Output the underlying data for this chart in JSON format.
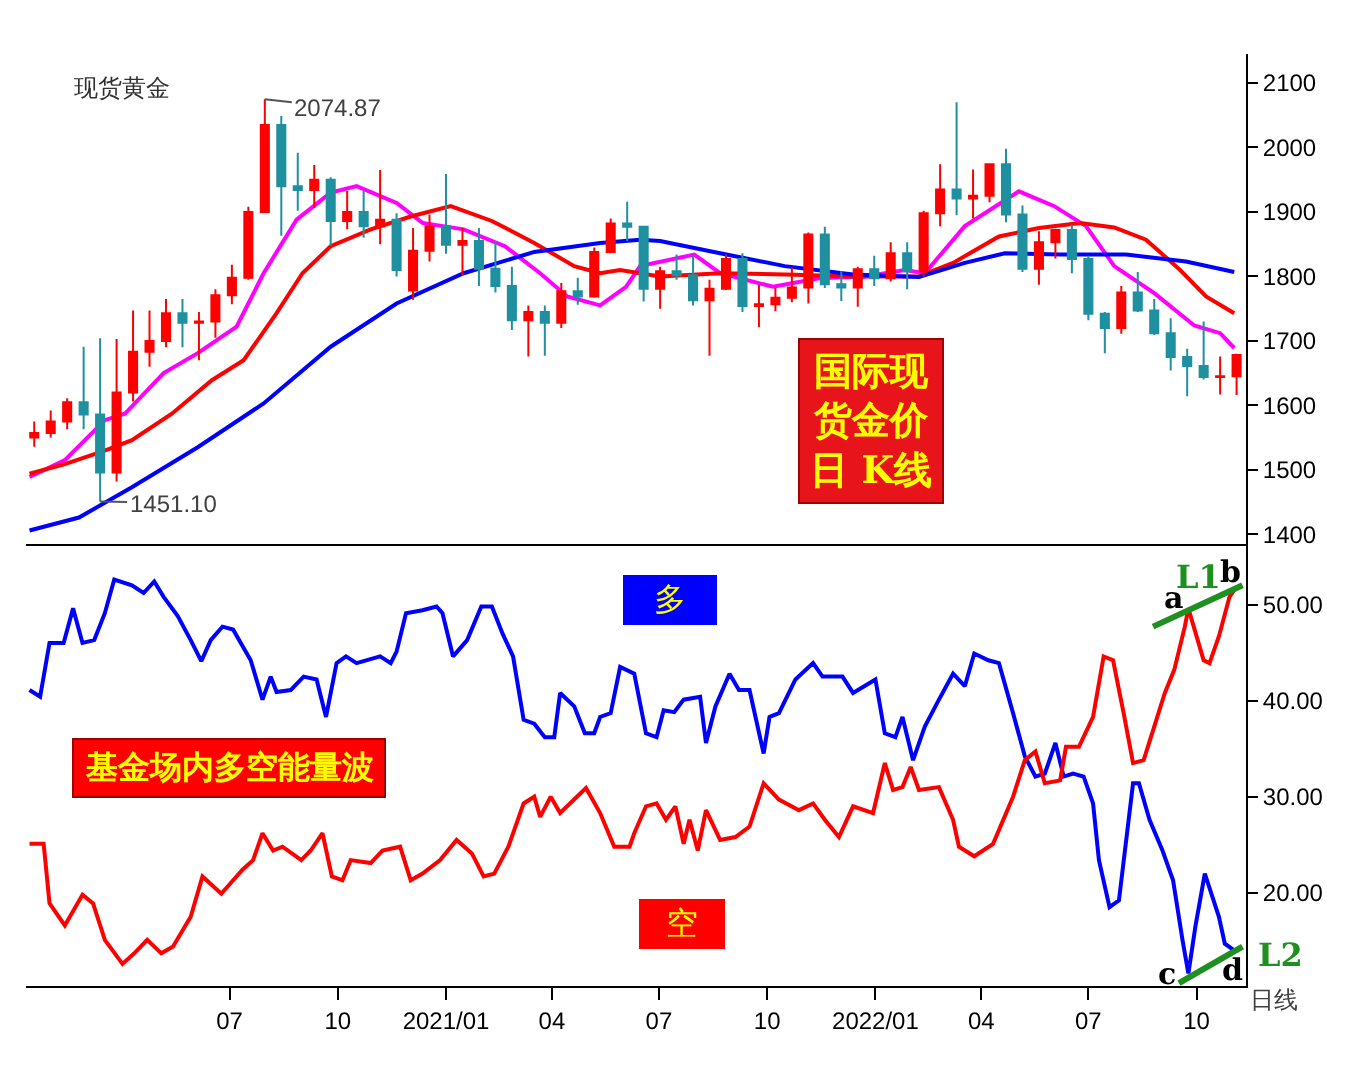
{
  "chart_data": [
    {
      "type": "candlestick",
      "title": "现货黄金",
      "x": [
        "2020-01-17",
        "2020-01-31",
        "2020-02-14",
        "2020-02-28",
        "2020-03-13",
        "2020-03-27",
        "2020-04-10",
        "2020-04-24",
        "2020-05-08",
        "2020-05-22",
        "2020-06-05",
        "2020-06-19",
        "2020-07-03",
        "2020-07-17",
        "2020-07-31",
        "2020-08-14",
        "2020-08-28",
        "2020-09-11",
        "2020-09-25",
        "2020-10-09",
        "2020-10-23",
        "2020-11-06",
        "2020-11-20",
        "2020-12-04",
        "2020-12-18",
        "2021-01-01",
        "2021-01-15",
        "2021-01-29",
        "2021-02-12",
        "2021-02-26",
        "2021-03-12",
        "2021-03-26",
        "2021-04-09",
        "2021-04-23",
        "2021-05-07",
        "2021-05-21",
        "2021-06-04",
        "2021-06-18",
        "2021-07-02",
        "2021-07-16",
        "2021-07-30",
        "2021-08-13",
        "2021-08-27",
        "2021-09-10",
        "2021-09-24",
        "2021-10-08",
        "2021-10-22",
        "2021-11-05",
        "2021-11-19",
        "2021-12-03",
        "2021-12-17",
        "2021-12-31",
        "2022-01-14",
        "2022-01-28",
        "2022-02-11",
        "2022-02-25",
        "2022-03-11",
        "2022-03-25",
        "2022-04-08",
        "2022-04-22",
        "2022-05-06",
        "2022-05-20",
        "2022-06-03",
        "2022-06-17",
        "2022-07-01",
        "2022-07-15",
        "2022-07-29",
        "2022-08-12",
        "2022-08-26",
        "2022-09-09",
        "2022-09-23",
        "2022-10-07",
        "2022-10-21",
        "2022-11-04"
      ],
      "ohlc": [
        [
          1550,
          1575,
          1536,
          1557
        ],
        [
          1557,
          1592,
          1550,
          1575
        ],
        [
          1575,
          1611,
          1563,
          1605
        ],
        [
          1605,
          1691,
          1563,
          1586
        ],
        [
          1586,
          1704,
          1451.1,
          1496
        ],
        [
          1496,
          1703,
          1482,
          1620
        ],
        [
          1620,
          1747,
          1606,
          1683
        ],
        [
          1683,
          1747,
          1660,
          1700
        ],
        [
          1700,
          1765,
          1690,
          1743
        ],
        [
          1743,
          1765,
          1690,
          1728
        ],
        [
          1728,
          1745,
          1670,
          1730
        ],
        [
          1730,
          1780,
          1705,
          1771
        ],
        [
          1771,
          1818,
          1757,
          1798
        ],
        [
          1798,
          1908,
          1795,
          1900
        ],
        [
          1900,
          2074.87,
          1900,
          2035
        ],
        [
          2035,
          2049,
          1863,
          1940
        ],
        [
          1940,
          1992,
          1902,
          1934
        ],
        [
          1934,
          1973,
          1906,
          1950
        ],
        [
          1950,
          1954,
          1848,
          1886
        ],
        [
          1886,
          1933,
          1873,
          1900
        ],
        [
          1900,
          1933,
          1860,
          1878
        ],
        [
          1878,
          1965,
          1850,
          1888
        ],
        [
          1888,
          1898,
          1800,
          1810
        ],
        [
          1778,
          1875,
          1764,
          1840
        ],
        [
          1840,
          1896,
          1823,
          1878
        ],
        [
          1878,
          1959,
          1835,
          1849
        ],
        [
          1849,
          1875,
          1802,
          1855
        ],
        [
          1855,
          1875,
          1785,
          1812
        ],
        [
          1812,
          1855,
          1775,
          1785
        ],
        [
          1785,
          1815,
          1717,
          1732
        ],
        [
          1732,
          1755,
          1676,
          1745
        ],
        [
          1745,
          1755,
          1677,
          1728
        ],
        [
          1728,
          1790,
          1720,
          1777
        ],
        [
          1777,
          1798,
          1756,
          1769
        ],
        [
          1769,
          1845,
          1767,
          1838
        ],
        [
          1838,
          1890,
          1836,
          1882
        ],
        [
          1882,
          1916,
          1855,
          1877
        ],
        [
          1877,
          1877,
          1761,
          1781
        ],
        [
          1781,
          1815,
          1750,
          1808
        ],
        [
          1808,
          1834,
          1795,
          1802
        ],
        [
          1802,
          1832,
          1755,
          1763
        ],
        [
          1763,
          1795,
          1677,
          1781
        ],
        [
          1781,
          1834,
          1779,
          1827
        ],
        [
          1827,
          1836,
          1745,
          1754
        ],
        [
          1754,
          1787,
          1721,
          1757
        ],
        [
          1757,
          1782,
          1746,
          1767
        ],
        [
          1767,
          1814,
          1760,
          1783
        ],
        [
          1783,
          1868,
          1758,
          1865
        ],
        [
          1865,
          1877,
          1782,
          1788
        ],
        [
          1788,
          1808,
          1762,
          1783
        ],
        [
          1783,
          1815,
          1753,
          1811
        ],
        [
          1811,
          1832,
          1785,
          1797
        ],
        [
          1797,
          1853,
          1792,
          1836
        ],
        [
          1836,
          1853,
          1780,
          1808
        ],
        [
          1808,
          1902,
          1800,
          1898
        ],
        [
          1898,
          1974,
          1878,
          1935
        ],
        [
          1935,
          2070,
          1895,
          1921
        ],
        [
          1921,
          1966,
          1890,
          1925
        ],
        [
          1925,
          1975,
          1915,
          1974
        ],
        [
          1974,
          1998,
          1884,
          1896
        ],
        [
          1896,
          1910,
          1807,
          1812
        ],
        [
          1812,
          1870,
          1787,
          1853
        ],
        [
          1853,
          1874,
          1828,
          1872
        ],
        [
          1872,
          1880,
          1805,
          1827
        ],
        [
          1827,
          1832,
          1732,
          1742
        ],
        [
          1742,
          1745,
          1681,
          1720
        ],
        [
          1720,
          1785,
          1711,
          1775
        ],
        [
          1775,
          1807,
          1745,
          1747
        ],
        [
          1747,
          1765,
          1709,
          1712
        ],
        [
          1712,
          1735,
          1654,
          1675
        ],
        [
          1675,
          1688,
          1614,
          1661
        ],
        [
          1661,
          1730,
          1640,
          1644
        ],
        [
          1644,
          1676,
          1617,
          1645
        ],
        [
          1645,
          1680,
          1616,
          1678
        ]
      ],
      "colors": [
        "#ff0000",
        "#ff0000",
        "#ff0000",
        "#1e90a0",
        "#1e90a0",
        "#ff0000",
        "#ff0000",
        "#ff0000",
        "#ff0000",
        "#1e90a0",
        "#ff0000",
        "#ff0000",
        "#ff0000",
        "#ff0000",
        "#ff0000",
        "#1e90a0",
        "#1e90a0",
        "#ff0000",
        "#1e90a0",
        "#ff0000",
        "#1e90a0",
        "#ff0000",
        "#1e90a0",
        "#ff0000",
        "#ff0000",
        "#1e90a0",
        "#ff0000",
        "#1e90a0",
        "#1e90a0",
        "#1e90a0",
        "#ff0000",
        "#1e90a0",
        "#ff0000",
        "#1e90a0",
        "#ff0000",
        "#ff0000",
        "#1e90a0",
        "#1e90a0",
        "#ff0000",
        "#1e90a0",
        "#1e90a0",
        "#ff0000",
        "#ff0000",
        "#1e90a0",
        "#ff0000",
        "#ff0000",
        "#ff0000",
        "#ff0000",
        "#1e90a0",
        "#1e90a0",
        "#ff0000",
        "#1e90a0",
        "#ff0000",
        "#1e90a0",
        "#ff0000",
        "#ff0000",
        "#1e90a0",
        "#ff0000",
        "#ff0000",
        "#1e90a0",
        "#1e90a0",
        "#ff0000",
        "#ff0000",
        "#1e90a0",
        "#1e90a0",
        "#1e90a0",
        "#ff0000",
        "#1e90a0",
        "#1e90a0",
        "#1e90a0",
        "#1e90a0",
        "#1e90a0",
        "#ff0000",
        "#ff0000"
      ],
      "series": [
        {
          "type": "line",
          "color": "#ff00ff",
          "x": [
            "2020-01-13",
            "2020-02-12",
            "2020-03-17",
            "2020-04-03",
            "2020-05-06",
            "2020-06-04",
            "2020-07-07",
            "2020-07-30",
            "2020-08-27",
            "2020-09-25",
            "2020-10-17",
            "2020-11-20",
            "2020-12-12",
            "2021-01-16",
            "2021-02-20",
            "2021-03-22",
            "2021-04-14",
            "2021-05-12",
            "2021-06-03",
            "2021-06-15",
            "2021-07-31",
            "2021-08-22",
            "2021-10-06",
            "2021-11-14",
            "2021-12-23",
            "2022-01-26",
            "2022-02-12",
            "2022-03-18",
            "2022-05-03",
            "2022-06-02",
            "2022-06-29",
            "2022-07-23",
            "2022-08-26",
            "2022-09-29",
            "2022-10-21",
            "2022-11-02"
          ],
          "values": [
            1489,
            1515,
            1577,
            1587,
            1650,
            1681,
            1722,
            1805,
            1888,
            1930,
            1940,
            1914,
            1883,
            1873,
            1847,
            1805,
            1769,
            1755,
            1784,
            1816,
            1834,
            1805,
            1784,
            1797,
            1800,
            1810,
            1805,
            1878,
            1932,
            1909,
            1878,
            1816,
            1774,
            1724,
            1712,
            1689
          ]
        },
        {
          "type": "line",
          "color": "#ff0000",
          "x": [
            "2020-01-13",
            "2020-02-12",
            "2020-03-17",
            "2020-04-09",
            "2020-05-13",
            "2020-06-16",
            "2020-07-13",
            "2020-08-10",
            "2020-09-01",
            "2020-09-25",
            "2020-10-29",
            "2020-12-02",
            "2021-01-05",
            "2021-02-09",
            "2021-03-17",
            "2021-04-20",
            "2021-05-12",
            "2021-05-29",
            "2021-07-02",
            "2021-08-22",
            "2021-10-17",
            "2021-12-13",
            "2022-02-07",
            "2022-03-08",
            "2022-04-16",
            "2022-05-20",
            "2022-06-24",
            "2022-07-23",
            "2022-08-19",
            "2022-09-17",
            "2022-10-09",
            "2022-11-02"
          ],
          "values": [
            1494,
            1509,
            1530,
            1546,
            1587,
            1639,
            1670,
            1743,
            1805,
            1847,
            1873,
            1893,
            1909,
            1886,
            1852,
            1816,
            1805,
            1810,
            1800,
            1805,
            1803,
            1800,
            1800,
            1821,
            1862,
            1875,
            1883,
            1876,
            1857,
            1810,
            1769,
            1743
          ]
        },
        {
          "type": "line",
          "color": "#0000ff",
          "x": [
            "2020-01-13",
            "2020-02-24",
            "2020-04-09",
            "2020-06-04",
            "2020-07-30",
            "2020-09-25",
            "2020-11-20",
            "2021-01-16",
            "2021-03-17",
            "2021-05-12",
            "2021-06-15",
            "2021-07-02",
            "2021-08-22",
            "2021-10-16",
            "2021-12-13",
            "2022-02-07",
            "2022-03-18",
            "2022-04-21",
            "2022-06-07",
            "2022-08-02",
            "2022-09-22",
            "2022-11-02"
          ],
          "values": [
            1406,
            1426,
            1473,
            1535,
            1603,
            1691,
            1758,
            1805,
            1838,
            1852,
            1857,
            1855,
            1836,
            1816,
            1803,
            1799,
            1821,
            1836,
            1834,
            1834,
            1823,
            1807
          ]
        }
      ],
      "xlim": [
        "2020-01-10",
        "2022-11-12"
      ],
      "ylim": [
        1385,
        2145
      ],
      "yticks": [
        1400,
        1500,
        1600,
        1700,
        1800,
        1900,
        2000,
        2100
      ],
      "tick_labels": "y",
      "annotations": [
        {
          "text": "2074.87",
          "x": "2020-07-31",
          "y": 2074.87
        },
        {
          "text": "1451.10",
          "x": "2020-03-13",
          "y": 1451.1
        },
        "国际现货金价日 K线"
      ]
    },
    {
      "type": "line",
      "series": [
        {
          "name": "多",
          "color": "#0000ff",
          "x": [
            "2020-01-13",
            "2020-01-22",
            "2020-01-30",
            "2020-02-11",
            "2020-02-19",
            "2020-02-27",
            "2020-03-08",
            "2020-03-17",
            "2020-03-25",
            "2020-04-09",
            "2020-04-19",
            "2020-04-28",
            "2020-05-06",
            "2020-05-18",
            "2020-05-29",
            "2020-06-07",
            "2020-06-15",
            "2020-06-25",
            "2020-07-04",
            "2020-07-19",
            "2020-07-29",
            "2020-08-05",
            "2020-08-10",
            "2020-08-22",
            "2020-09-02",
            "2020-09-13",
            "2020-09-21",
            "2020-09-30",
            "2020-10-08",
            "2020-10-17",
            "2020-11-06",
            "2020-11-15",
            "2020-11-20",
            "2020-11-28",
            "2020-12-12",
            "2020-12-24",
            "2020-12-29",
            "2021-01-07",
            "2021-01-19",
            "2021-01-31",
            "2021-02-09",
            "2021-02-18",
            "2021-02-27",
            "2021-03-08",
            "2021-03-17",
            "2021-03-26",
            "2021-04-03",
            "2021-04-08",
            "2021-04-20",
            "2021-04-29",
            "2021-05-07",
            "2021-05-12",
            "2021-05-21",
            "2021-05-29",
            "2021-06-10",
            "2021-06-20",
            "2021-06-29",
            "2021-07-05",
            "2021-07-14",
            "2021-07-22",
            "2021-08-05",
            "2021-08-10",
            "2021-08-18",
            "2021-08-30",
            "2021-09-07",
            "2021-09-16",
            "2021-09-28",
            "2021-10-03",
            "2021-10-11",
            "2021-10-25",
            "2021-11-09",
            "2021-11-17",
            "2021-12-04",
            "2021-12-13",
            "2022-01-01",
            "2022-01-09",
            "2022-01-18",
            "2022-01-24",
            "2022-02-02",
            "2022-02-12",
            "2022-02-24",
            "2022-03-08",
            "2022-03-18",
            "2022-03-26",
            "2022-04-07",
            "2022-04-16",
            "2022-04-28",
            "2022-05-08",
            "2022-05-17",
            "2022-05-25",
            "2022-06-03",
            "2022-06-10",
            "2022-06-18",
            "2022-06-27",
            "2022-07-05",
            "2022-07-10",
            "2022-07-19",
            "2022-07-27",
            "2022-08-08",
            "2022-08-13",
            "2022-08-22",
            "2022-09-02",
            "2022-09-11",
            "2022-09-19",
            "2022-09-24",
            "2022-09-30",
            "2022-10-08",
            "2022-10-20",
            "2022-10-25",
            "2022-11-02"
          ],
          "values": [
            41.1,
            40.4,
            46.0,
            46.0,
            49.6,
            46.0,
            46.3,
            49.1,
            52.6,
            52.0,
            51.2,
            52.4,
            50.8,
            48.8,
            46.3,
            44.1,
            46.3,
            47.7,
            47.4,
            44.2,
            40.1,
            42.5,
            40.9,
            41.1,
            42.5,
            42.2,
            38.3,
            43.9,
            44.6,
            43.9,
            44.6,
            43.9,
            45.1,
            49.1,
            49.4,
            49.8,
            49.1,
            44.6,
            46.3,
            49.8,
            49.8,
            47.0,
            44.6,
            38.0,
            37.6,
            36.2,
            36.2,
            40.8,
            39.4,
            36.6,
            36.6,
            38.3,
            38.7,
            43.5,
            42.8,
            36.6,
            36.2,
            39.0,
            38.8,
            40.1,
            40.4,
            35.6,
            39.4,
            42.8,
            41.1,
            41.1,
            34.5,
            38.3,
            38.7,
            42.2,
            43.9,
            42.5,
            42.5,
            40.8,
            42.2,
            36.6,
            36.2,
            38.3,
            33.8,
            37.3,
            40.1,
            42.8,
            41.5,
            44.9,
            44.2,
            43.9,
            38.7,
            34.2,
            32.1,
            32.4,
            35.6,
            32.1,
            32.4,
            32.1,
            29.3,
            23.4,
            18.5,
            19.2,
            31.4,
            31.4,
            27.6,
            24.4,
            21.3,
            15.1,
            11.6,
            16.5,
            22.0,
            17.5,
            14.7,
            14.0
          ]
        },
        {
          "name": "空",
          "color": "#ff0000",
          "x": [
            "2020-01-13",
            "2020-01-25",
            "2020-01-30",
            "2020-02-12",
            "2020-02-27",
            "2020-03-07",
            "2020-03-17",
            "2020-04-01",
            "2020-04-11",
            "2020-04-22",
            "2020-05-04",
            "2020-05-14",
            "2020-05-29",
            "2020-06-08",
            "2020-06-24",
            "2020-07-12",
            "2020-07-21",
            "2020-07-29",
            "2020-08-07",
            "2020-08-15",
            "2020-08-31",
            "2020-09-08",
            "2020-09-18",
            "2020-09-26",
            "2020-10-05",
            "2020-10-12",
            "2020-10-29",
            "2020-11-08",
            "2020-11-23",
            "2020-12-02",
            "2020-12-12",
            "2020-12-27",
            "2021-01-10",
            "2021-01-23",
            "2021-02-02",
            "2021-02-11",
            "2021-02-23",
            "2021-03-08",
            "2021-03-17",
            "2021-03-22",
            "2021-03-31",
            "2021-04-08",
            "2021-04-30",
            "2021-05-12",
            "2021-05-24",
            "2021-06-06",
            "2021-06-10",
            "2021-06-20",
            "2021-06-29",
            "2021-07-07",
            "2021-07-15",
            "2021-07-22",
            "2021-07-27",
            "2021-08-03",
            "2021-08-10",
            "2021-08-22",
            "2021-09-04",
            "2021-09-16",
            "2021-09-28",
            "2021-10-11",
            "2021-10-28",
            "2021-11-09",
            "2021-11-19",
            "2021-12-01",
            "2021-12-13",
            "2021-12-30",
            "2022-01-09",
            "2022-01-16",
            "2022-01-24",
            "2022-01-31",
            "2022-02-07",
            "2022-02-24",
            "2022-03-08",
            "2022-03-13",
            "2022-03-26",
            "2022-04-11",
            "2022-04-28",
            "2022-05-08",
            "2022-05-17",
            "2022-05-25",
            "2022-06-07",
            "2022-06-12",
            "2022-06-23",
            "2022-07-05",
            "2022-07-14",
            "2022-07-22",
            "2022-07-31",
            "2022-08-08",
            "2022-08-17",
            "2022-08-25",
            "2022-09-04",
            "2022-09-12",
            "2022-09-21",
            "2022-09-24",
            "2022-10-07",
            "2022-10-12",
            "2022-10-20",
            "2022-10-29",
            "2022-11-02"
          ],
          "values": [
            25.1,
            25.1,
            18.9,
            16.6,
            19.8,
            18.9,
            15.1,
            12.6,
            13.7,
            15.1,
            13.7,
            14.4,
            17.5,
            21.7,
            19.9,
            22.4,
            23.4,
            26.2,
            24.4,
            24.8,
            23.4,
            24.4,
            26.2,
            21.7,
            21.3,
            23.4,
            23.1,
            24.4,
            24.8,
            21.3,
            22.0,
            23.4,
            25.5,
            24.1,
            21.7,
            22.0,
            24.8,
            29.3,
            30.0,
            27.9,
            30.0,
            28.3,
            30.9,
            28.3,
            24.8,
            24.8,
            26.2,
            29.0,
            29.3,
            27.6,
            29.0,
            25.1,
            27.6,
            24.4,
            28.6,
            25.5,
            25.8,
            26.9,
            31.4,
            29.7,
            28.6,
            29.3,
            27.6,
            25.8,
            29.0,
            28.3,
            33.5,
            30.7,
            31.0,
            33.1,
            30.7,
            31.0,
            27.6,
            24.8,
            23.8,
            25.1,
            30.0,
            33.8,
            34.7,
            31.4,
            31.7,
            35.2,
            35.2,
            38.3,
            44.6,
            44.2,
            38.7,
            33.5,
            33.8,
            36.9,
            40.8,
            43.2,
            47.7,
            49.6,
            44.2,
            43.9,
            46.7,
            50.8,
            51.5
          ]
        },
        {
          "name": "L1",
          "color": "#1f8f1f",
          "x": [
            "2022-08-25",
            "2022-11-09"
          ],
          "values": [
            47.7,
            52.0
          ]
        },
        {
          "name": "L2",
          "color": "#1f8f1f",
          "x": [
            "2022-09-16",
            "2022-11-09"
          ],
          "values": [
            10.6,
            14.4
          ]
        }
      ],
      "xlim": [
        "2020-01-10",
        "2022-11-12"
      ],
      "xticks": [
        {
          "value": "2020-07-01",
          "label": "07"
        },
        {
          "value": "2020-10-01",
          "label": "10"
        },
        {
          "value": "2021-01-01",
          "label": "2021/01"
        },
        {
          "value": "2021-04-01",
          "label": "04"
        },
        {
          "value": "2021-07-01",
          "label": "07"
        },
        {
          "value": "2021-10-01",
          "label": "10"
        },
        {
          "value": "2022-01-01",
          "label": "2022/01"
        },
        {
          "value": "2022-04-01",
          "label": "04"
        },
        {
          "value": "2022-07-01",
          "label": "07"
        },
        {
          "value": "2022-10-01",
          "label": "10"
        }
      ],
      "ylim": [
        10.3,
        56.3
      ],
      "yticks": [
        {
          "value": 20,
          "label": "20.00"
        },
        {
          "value": 30,
          "label": "30.00"
        },
        {
          "value": 40,
          "label": "40.00"
        },
        {
          "value": 50,
          "label": "50.00"
        }
      ],
      "annotations": [
        "基金场内多空能量波",
        "日线",
        "a",
        "b",
        "c",
        "d"
      ]
    }
  ]
}
